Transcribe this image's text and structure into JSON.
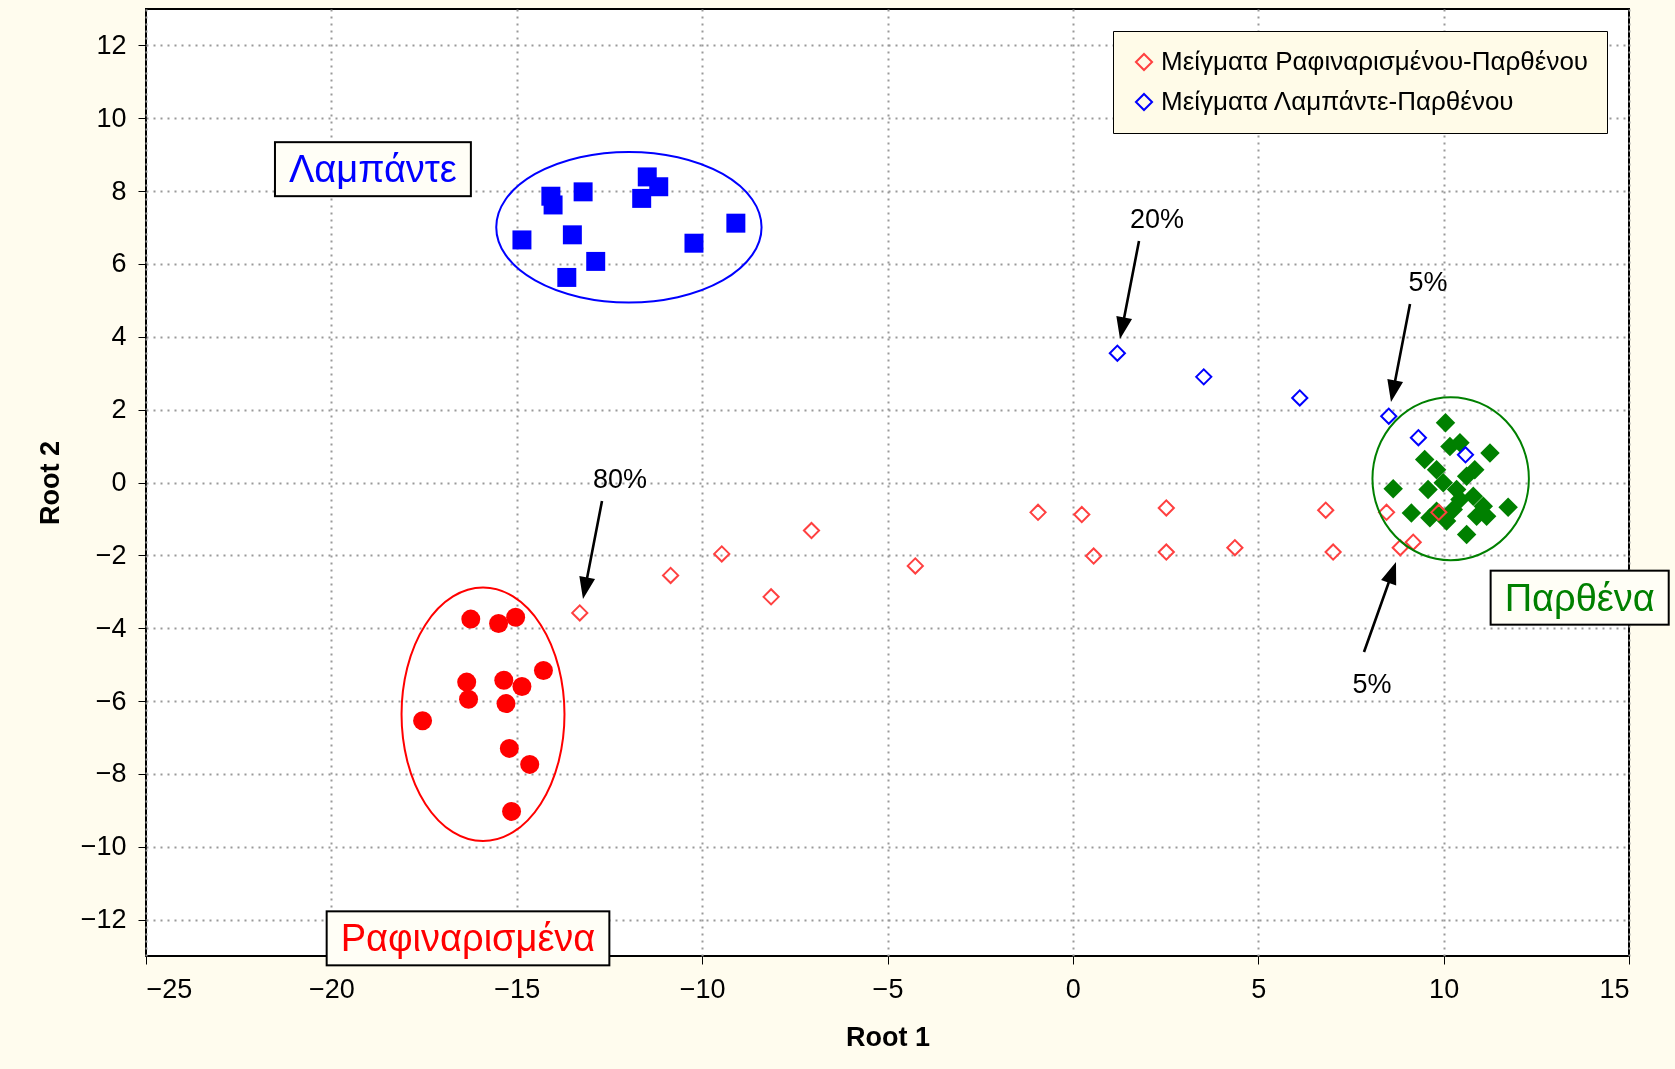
{
  "chart_data": {
    "type": "scatter",
    "xlabel": "Root 1",
    "ylabel": "Root 2",
    "xlim": [
      -25,
      15
    ],
    "ylim": [
      -13,
      13
    ],
    "xticks": [
      -25,
      -20,
      -15,
      -10,
      -5,
      0,
      5,
      10,
      15
    ],
    "yticks": [
      -12,
      -10,
      -8,
      -6,
      -4,
      -2,
      0,
      2,
      4,
      6,
      8,
      10,
      12
    ],
    "grid": true,
    "legend": "top right",
    "series": [
      {
        "name": "Μείγματα Ραφιναρισμένου-Παρθένου",
        "color": "#ff4040",
        "marker": "diamond",
        "x": [
          -13.3,
          -10.85,
          -9.47,
          -8.14,
          -7.05,
          -4.25,
          -0.94,
          0.24,
          0.56,
          2.52,
          2.52,
          4.37,
          6.82,
          7.02,
          8.46,
          8.83,
          9.18,
          9.87
        ],
        "values": [
          -3.58,
          -2.55,
          -1.96,
          -3.14,
          -1.32,
          -2.29,
          -0.82,
          -0.88,
          -2.02,
          -0.7,
          -1.91,
          -1.79,
          -0.76,
          -1.91,
          -0.82,
          -1.79,
          -1.64,
          -0.82
        ]
      },
      {
        "name": "Μείγματα Λαμπάντε-Παρθένου",
        "color": "#0000ff",
        "marker": "diamond",
        "x": [
          1.2,
          3.53,
          6.12,
          8.52,
          9.32,
          10.59
        ],
        "values": [
          3.55,
          2.9,
          2.32,
          1.82,
          1.23,
          0.76
        ]
      },
      {
        "color": "#0000ff",
        "marker": "square",
        "x": [
          -14.86,
          -14.08,
          -14.02,
          -13.21,
          -13.5,
          -13.65,
          -12.87,
          -11.48,
          -11.17,
          -11.63,
          -10.22,
          -9.09
        ],
        "values": [
          6.66,
          7.86,
          7.62,
          7.98,
          6.8,
          5.63,
          6.07,
          8.39,
          8.12,
          7.8,
          6.57,
          7.12
        ]
      },
      {
        "color": "#ff0000",
        "marker": "circle",
        "x": [
          -17.54,
          -16.24,
          -15.49,
          -15.03,
          -16.35,
          -16.3,
          -15.35,
          -15.29,
          -14.86,
          -14.28,
          -15.2,
          -14.65,
          -15.14
        ],
        "values": [
          -6.54,
          -3.75,
          -3.87,
          -3.7,
          -5.48,
          -5.95,
          -5.43,
          -6.07,
          -5.6,
          -5.16,
          -7.3,
          -7.74,
          -9.03
        ]
      },
      {
        "color": "#008000",
        "marker": "diamond",
        "x": [
          10.05,
          10.17,
          10.44,
          11.25,
          9.49,
          9.81,
          10.84,
          10.62,
          8.64,
          9.58,
          9.99,
          10.35,
          10.44,
          10.8,
          11.07,
          11.16,
          11.74,
          9.13,
          9.63,
          10.08,
          10.89,
          10.62,
          9.81,
          10.26
        ],
        "values": [
          1.64,
          0.99,
          1.09,
          0.81,
          0.63,
          0.35,
          0.35,
          0.17,
          -0.17,
          -0.19,
          -0.01,
          -0.19,
          -0.47,
          -0.38,
          -0.65,
          -0.93,
          -0.68,
          -0.84,
          -0.97,
          -1.06,
          -0.93,
          -1.43,
          -0.79,
          -0.74
        ]
      }
    ],
    "annotations": [
      "Λαμπάντε",
      "Ραφιναρισμένα",
      "Παρθένα",
      "20%",
      "5%",
      "80%",
      "5%"
    ]
  }
}
